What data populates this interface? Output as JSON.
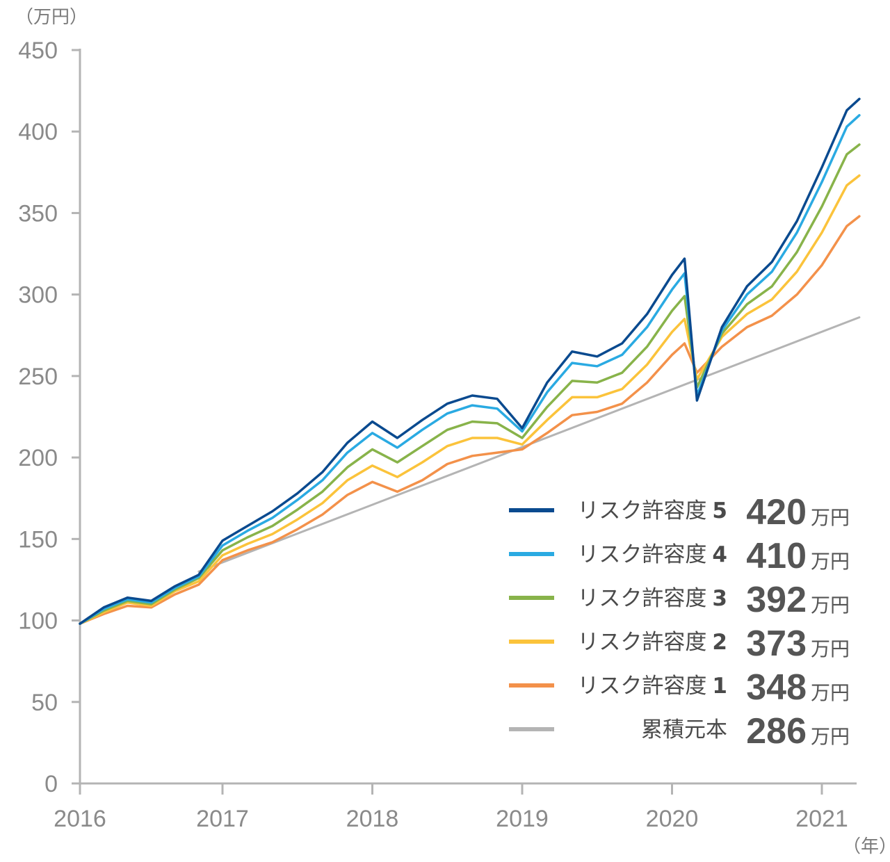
{
  "chart_data": {
    "type": "line",
    "y_unit_label": "（万円）",
    "x_unit_label": "（年）",
    "ylim": [
      0,
      450
    ],
    "y_ticks": [
      0,
      50,
      100,
      150,
      200,
      250,
      300,
      350,
      400,
      450
    ],
    "x_ticks": [
      "2016",
      "2017",
      "2018",
      "2019",
      "2020",
      "2021"
    ],
    "x_range": [
      "2016-01",
      "2021-04"
    ],
    "grid": false,
    "legend_position": "bottom-right",
    "value_unit": "万円",
    "series": [
      {
        "name": "リスク許容度",
        "level": "5",
        "final_value": "420",
        "color": "#0a4a8f",
        "points": [
          [
            "2016-01",
            98
          ],
          [
            "2016-03",
            108
          ],
          [
            "2016-05",
            114
          ],
          [
            "2016-07",
            112
          ],
          [
            "2016-09",
            121
          ],
          [
            "2016-11",
            128
          ],
          [
            "2017-01",
            149
          ],
          [
            "2017-03",
            158
          ],
          [
            "2017-05",
            167
          ],
          [
            "2017-07",
            178
          ],
          [
            "2017-09",
            191
          ],
          [
            "2017-11",
            209
          ],
          [
            "2018-01",
            222
          ],
          [
            "2018-03",
            212
          ],
          [
            "2018-05",
            223
          ],
          [
            "2018-07",
            233
          ],
          [
            "2018-09",
            238
          ],
          [
            "2018-11",
            236
          ],
          [
            "2019-01",
            218
          ],
          [
            "2019-03",
            246
          ],
          [
            "2019-05",
            265
          ],
          [
            "2019-07",
            262
          ],
          [
            "2019-09",
            270
          ],
          [
            "2019-11",
            288
          ],
          [
            "2020-01",
            312
          ],
          [
            "2020-02",
            322
          ],
          [
            "2020-03",
            235
          ],
          [
            "2020-05",
            280
          ],
          [
            "2020-07",
            305
          ],
          [
            "2020-09",
            320
          ],
          [
            "2020-11",
            345
          ],
          [
            "2021-01",
            378
          ],
          [
            "2021-03",
            413
          ],
          [
            "2021-04",
            420
          ]
        ]
      },
      {
        "name": "リスク許容度",
        "level": "4",
        "final_value": "410",
        "color": "#2aaae2",
        "points": [
          [
            "2016-01",
            98
          ],
          [
            "2016-03",
            107
          ],
          [
            "2016-05",
            113
          ],
          [
            "2016-07",
            111
          ],
          [
            "2016-09",
            120
          ],
          [
            "2016-11",
            127
          ],
          [
            "2017-01",
            146
          ],
          [
            "2017-03",
            155
          ],
          [
            "2017-05",
            163
          ],
          [
            "2017-07",
            174
          ],
          [
            "2017-09",
            186
          ],
          [
            "2017-11",
            203
          ],
          [
            "2018-01",
            215
          ],
          [
            "2018-03",
            206
          ],
          [
            "2018-05",
            217
          ],
          [
            "2018-07",
            227
          ],
          [
            "2018-09",
            232
          ],
          [
            "2018-11",
            230
          ],
          [
            "2019-01",
            216
          ],
          [
            "2019-03",
            240
          ],
          [
            "2019-05",
            258
          ],
          [
            "2019-07",
            256
          ],
          [
            "2019-09",
            263
          ],
          [
            "2019-11",
            280
          ],
          [
            "2020-01",
            303
          ],
          [
            "2020-02",
            313
          ],
          [
            "2020-03",
            238
          ],
          [
            "2020-05",
            278
          ],
          [
            "2020-07",
            300
          ],
          [
            "2020-09",
            314
          ],
          [
            "2020-11",
            338
          ],
          [
            "2021-01",
            369
          ],
          [
            "2021-03",
            403
          ],
          [
            "2021-04",
            410
          ]
        ]
      },
      {
        "name": "リスク許容度",
        "level": "3",
        "final_value": "392",
        "color": "#88b34a",
        "points": [
          [
            "2016-01",
            98
          ],
          [
            "2016-03",
            106
          ],
          [
            "2016-05",
            112
          ],
          [
            "2016-07",
            110
          ],
          [
            "2016-09",
            119
          ],
          [
            "2016-11",
            126
          ],
          [
            "2017-01",
            143
          ],
          [
            "2017-03",
            151
          ],
          [
            "2017-05",
            158
          ],
          [
            "2017-07",
            168
          ],
          [
            "2017-09",
            179
          ],
          [
            "2017-11",
            194
          ],
          [
            "2018-01",
            205
          ],
          [
            "2018-03",
            197
          ],
          [
            "2018-05",
            207
          ],
          [
            "2018-07",
            217
          ],
          [
            "2018-09",
            222
          ],
          [
            "2018-11",
            221
          ],
          [
            "2019-01",
            212
          ],
          [
            "2019-03",
            231
          ],
          [
            "2019-05",
            247
          ],
          [
            "2019-07",
            246
          ],
          [
            "2019-09",
            252
          ],
          [
            "2019-11",
            268
          ],
          [
            "2020-01",
            290
          ],
          [
            "2020-02",
            299
          ],
          [
            "2020-03",
            243
          ],
          [
            "2020-05",
            276
          ],
          [
            "2020-07",
            294
          ],
          [
            "2020-09",
            305
          ],
          [
            "2020-11",
            326
          ],
          [
            "2021-01",
            354
          ],
          [
            "2021-03",
            386
          ],
          [
            "2021-04",
            392
          ]
        ]
      },
      {
        "name": "リスク許容度",
        "level": "2",
        "final_value": "373",
        "color": "#fbc33b",
        "points": [
          [
            "2016-01",
            98
          ],
          [
            "2016-03",
            105
          ],
          [
            "2016-05",
            111
          ],
          [
            "2016-07",
            109
          ],
          [
            "2016-09",
            118
          ],
          [
            "2016-11",
            124
          ],
          [
            "2017-01",
            140
          ],
          [
            "2017-03",
            147
          ],
          [
            "2017-05",
            153
          ],
          [
            "2017-07",
            162
          ],
          [
            "2017-09",
            172
          ],
          [
            "2017-11",
            186
          ],
          [
            "2018-01",
            195
          ],
          [
            "2018-03",
            188
          ],
          [
            "2018-05",
            197
          ],
          [
            "2018-07",
            207
          ],
          [
            "2018-09",
            212
          ],
          [
            "2018-11",
            212
          ],
          [
            "2019-01",
            208
          ],
          [
            "2019-03",
            223
          ],
          [
            "2019-05",
            237
          ],
          [
            "2019-07",
            237
          ],
          [
            "2019-09",
            242
          ],
          [
            "2019-11",
            257
          ],
          [
            "2020-01",
            277
          ],
          [
            "2020-02",
            285
          ],
          [
            "2020-03",
            248
          ],
          [
            "2020-05",
            274
          ],
          [
            "2020-07",
            288
          ],
          [
            "2020-09",
            297
          ],
          [
            "2020-11",
            314
          ],
          [
            "2021-01",
            338
          ],
          [
            "2021-03",
            367
          ],
          [
            "2021-04",
            373
          ]
        ]
      },
      {
        "name": "リスク許容度",
        "level": "1",
        "final_value": "348",
        "color": "#f3914a",
        "points": [
          [
            "2016-01",
            98
          ],
          [
            "2016-03",
            104
          ],
          [
            "2016-05",
            109
          ],
          [
            "2016-07",
            108
          ],
          [
            "2016-09",
            116
          ],
          [
            "2016-11",
            122
          ],
          [
            "2017-01",
            137
          ],
          [
            "2017-03",
            143
          ],
          [
            "2017-05",
            148
          ],
          [
            "2017-07",
            156
          ],
          [
            "2017-09",
            165
          ],
          [
            "2017-11",
            177
          ],
          [
            "2018-01",
            185
          ],
          [
            "2018-03",
            179
          ],
          [
            "2018-05",
            186
          ],
          [
            "2018-07",
            196
          ],
          [
            "2018-09",
            201
          ],
          [
            "2018-11",
            203
          ],
          [
            "2019-01",
            205
          ],
          [
            "2019-03",
            215
          ],
          [
            "2019-05",
            226
          ],
          [
            "2019-07",
            228
          ],
          [
            "2019-09",
            233
          ],
          [
            "2019-11",
            246
          ],
          [
            "2020-01",
            263
          ],
          [
            "2020-02",
            270
          ],
          [
            "2020-03",
            252
          ],
          [
            "2020-05",
            268
          ],
          [
            "2020-07",
            280
          ],
          [
            "2020-09",
            287
          ],
          [
            "2020-11",
            300
          ],
          [
            "2021-01",
            318
          ],
          [
            "2021-03",
            342
          ],
          [
            "2021-04",
            348
          ]
        ]
      },
      {
        "name": "累積元本",
        "level": "",
        "final_value": "286",
        "color": "#b4b4b4",
        "points": [
          [
            "2016-11",
            130
          ],
          [
            "2021-04",
            286
          ]
        ]
      }
    ]
  }
}
